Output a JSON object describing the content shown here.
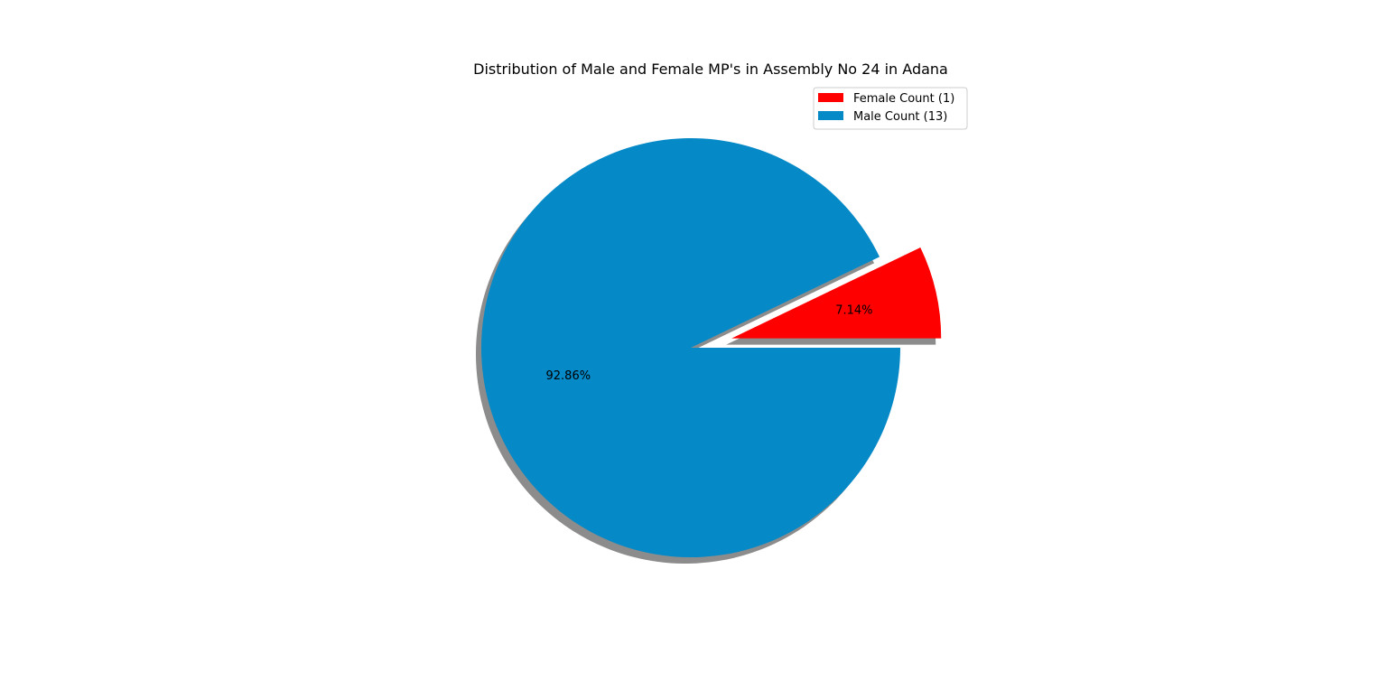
{
  "chart_data": {
    "type": "pie",
    "title": "Distribution of Male and Female MP's in Assembly No 24 in Adana",
    "slices": [
      {
        "label": "Female Count (1)",
        "value": 1,
        "percent_label": "7.14%",
        "color": "#ff0000",
        "exploded": true
      },
      {
        "label": "Male Count (13)",
        "value": 13,
        "percent_label": "92.86%",
        "color": "#0589c7",
        "exploded": false
      }
    ],
    "shadow": true,
    "shadow_color": "#808080",
    "legend": {
      "position": "upper-right",
      "entries": [
        "Female Count (1)",
        "Male Count (13)"
      ]
    }
  }
}
